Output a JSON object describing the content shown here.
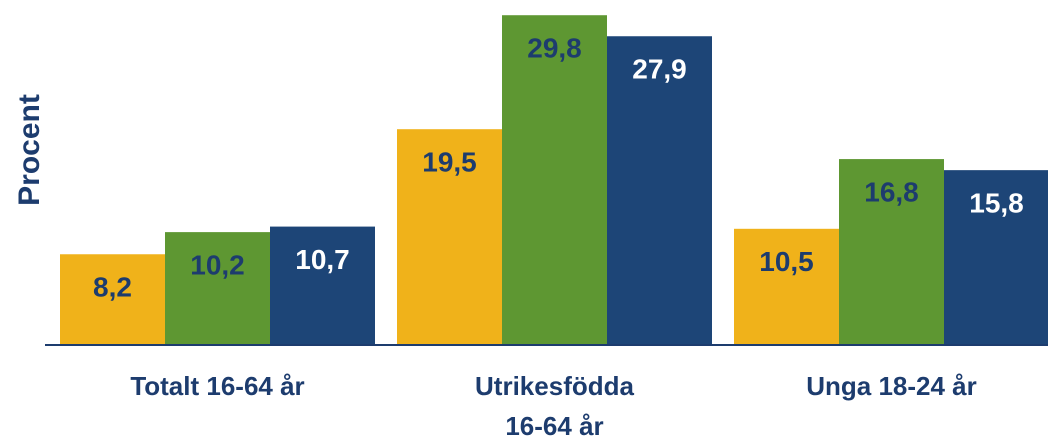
{
  "chart_data": {
    "type": "bar",
    "ylabel": "Procent",
    "categories": [
      "Totalt 16-64 år",
      "Utrikesfödda\n16-64 år",
      "Unga 18-24 år"
    ],
    "series": [
      {
        "color": "#f0b21a",
        "label_color": "#1d3c6e",
        "values": [
          8.2,
          19.5,
          10.5
        ],
        "value_labels": [
          "8,2",
          "19,5",
          "10,5"
        ]
      },
      {
        "color": "#5e9732",
        "label_color": "#1d3c6e",
        "values": [
          10.2,
          29.8,
          16.8
        ],
        "value_labels": [
          "10,2",
          "29,8",
          "16,8"
        ]
      },
      {
        "color": "#1d4577",
        "label_color": "#ffffff",
        "values": [
          10.7,
          27.9,
          15.8
        ],
        "value_labels": [
          "10,7",
          "27,9",
          "15,8"
        ]
      }
    ],
    "ylim": [
      0,
      30
    ]
  }
}
